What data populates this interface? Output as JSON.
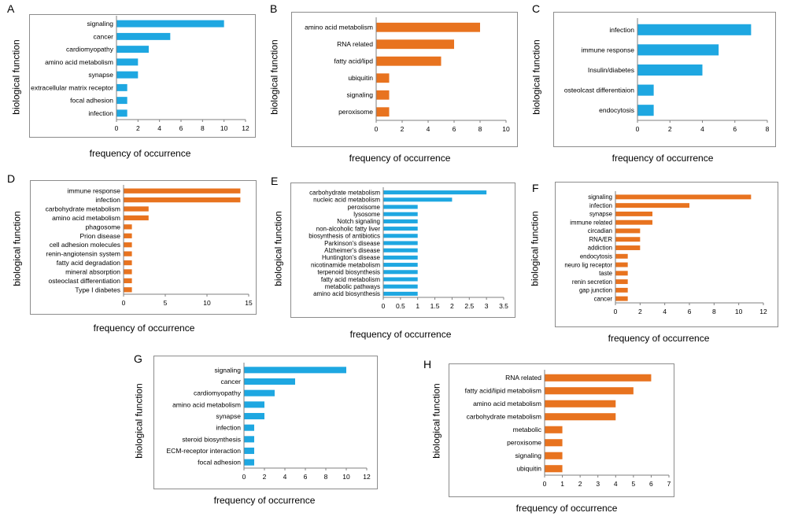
{
  "colors": {
    "blue": "#1ea7e1",
    "orange": "#e8731f"
  },
  "chart_data": [
    {
      "panel": "A",
      "type": "bar",
      "orientation": "horizontal",
      "color": "blue",
      "ylabel": "biological function",
      "xlabel": "frequency of occurrence",
      "xlim": [
        0,
        12
      ],
      "xticks": [
        0,
        2,
        4,
        6,
        8,
        10,
        12
      ],
      "categories": [
        "signaling",
        "cancer",
        "cardiomyopathy",
        "amino acid metabolism",
        "synapse",
        "extracellular matrix receptor",
        "focal adhesion",
        "infection"
      ],
      "values": [
        10,
        5,
        3,
        2,
        2,
        1,
        1,
        1
      ]
    },
    {
      "panel": "B",
      "type": "bar",
      "orientation": "horizontal",
      "color": "orange",
      "ylabel": "biological function",
      "xlabel": "frequency of occurrence",
      "xlim": [
        0,
        10
      ],
      "xticks": [
        0,
        2,
        4,
        6,
        8,
        10
      ],
      "categories": [
        "amino acid metabolism",
        "RNA related",
        "fatty acid/lipd",
        "ubiquitin",
        "signaling",
        "peroxisome"
      ],
      "values": [
        8,
        6,
        5,
        1,
        1,
        1
      ]
    },
    {
      "panel": "C",
      "type": "bar",
      "orientation": "horizontal",
      "color": "blue",
      "ylabel": "biological function",
      "xlabel": "frequency of occurrence",
      "xlim": [
        0,
        8
      ],
      "xticks": [
        0,
        2,
        4,
        6,
        8
      ],
      "categories": [
        "infection",
        "immune response",
        "Insulin/diabetes",
        "osteolcast differentiaion",
        "endocytosis"
      ],
      "values": [
        7,
        5,
        4,
        1,
        1
      ]
    },
    {
      "panel": "D",
      "type": "bar",
      "orientation": "horizontal",
      "color": "orange",
      "ylabel": "biological function",
      "xlabel": "frequency of occurrence",
      "xlim": [
        0,
        15
      ],
      "xticks": [
        0,
        5,
        10,
        15
      ],
      "categories": [
        "immune response",
        "infection",
        "carbohydrate metabolism",
        "amino acid metabolism",
        "phagosome",
        "Prion disease",
        "cell adhesion molecules",
        "renin-angiotensin system",
        "fatty acid degradation",
        "mineral absorption",
        "osteoclast differentiation",
        "Type I diabetes"
      ],
      "values": [
        14,
        14,
        3,
        3,
        1,
        1,
        1,
        1,
        1,
        1,
        1,
        1
      ]
    },
    {
      "panel": "E",
      "type": "bar",
      "orientation": "horizontal",
      "color": "blue",
      "ylabel": "biological function",
      "xlabel": "frequency of occurrence",
      "xlim": [
        0,
        3.5
      ],
      "xticks": [
        0,
        0.5,
        1,
        1.5,
        2,
        2.5,
        3,
        3.5
      ],
      "categories": [
        "carbohydrate metabolism",
        "nucleic acid metabolism",
        "peroxisome",
        "lysosome",
        "Notch signaling",
        "non-alcoholic fatty liver",
        "biosynthesis of antibiotics",
        "Parkinson's disease",
        "Alzheimer's disease",
        "Huntington's disease",
        "nicotinamide metabolism",
        "terpenoid biosynthesis",
        "fatty acid metabolism",
        "metabolic pathways",
        "amino acid biosynthesis"
      ],
      "values": [
        3,
        2,
        1,
        1,
        1,
        1,
        1,
        1,
        1,
        1,
        1,
        1,
        1,
        1,
        1
      ]
    },
    {
      "panel": "F",
      "type": "bar",
      "orientation": "horizontal",
      "color": "orange",
      "ylabel": "biological function",
      "xlabel": "frequency of occurrence",
      "xlim": [
        0,
        12
      ],
      "xticks": [
        0,
        2,
        4,
        6,
        8,
        10,
        12
      ],
      "categories": [
        "signaling",
        "infection",
        "synapse",
        "immune related",
        "circadian",
        "RNA/ER",
        "addiction",
        "endocytosis",
        "neuro lig receptor",
        "taste",
        "renin secretion",
        "gap junction",
        "cancer"
      ],
      "values": [
        11,
        6,
        3,
        3,
        2,
        2,
        2,
        1,
        1,
        1,
        1,
        1,
        1
      ]
    },
    {
      "panel": "G",
      "type": "bar",
      "orientation": "horizontal",
      "color": "blue",
      "ylabel": "biological function",
      "xlabel": "frequency of occurrence",
      "xlim": [
        0,
        12
      ],
      "xticks": [
        0,
        2,
        4,
        6,
        8,
        10,
        12
      ],
      "categories": [
        "signaling",
        "cancer",
        "cardiomyopathy",
        "amino acid metabolism",
        "synapse",
        "infection",
        "steroid biosynthesis",
        "ECM-receptor interaction",
        "focal adhesion"
      ],
      "values": [
        10,
        5,
        3,
        2,
        2,
        1,
        1,
        1,
        1
      ]
    },
    {
      "panel": "H",
      "type": "bar",
      "orientation": "horizontal",
      "color": "orange",
      "ylabel": "biological function",
      "xlabel": "frequency of occurrence",
      "xlim": [
        0,
        7
      ],
      "xticks": [
        0,
        1,
        2,
        3,
        4,
        5,
        6,
        7
      ],
      "categories": [
        "RNA related",
        "fatty acid/lipid metabolism",
        "amino acid metabolism",
        "carbohydrate metabolism",
        "metabolic",
        "peroxisome",
        "signaling",
        "ubiquitin"
      ],
      "values": [
        6,
        5,
        4,
        4,
        1,
        1,
        1,
        1
      ]
    }
  ]
}
